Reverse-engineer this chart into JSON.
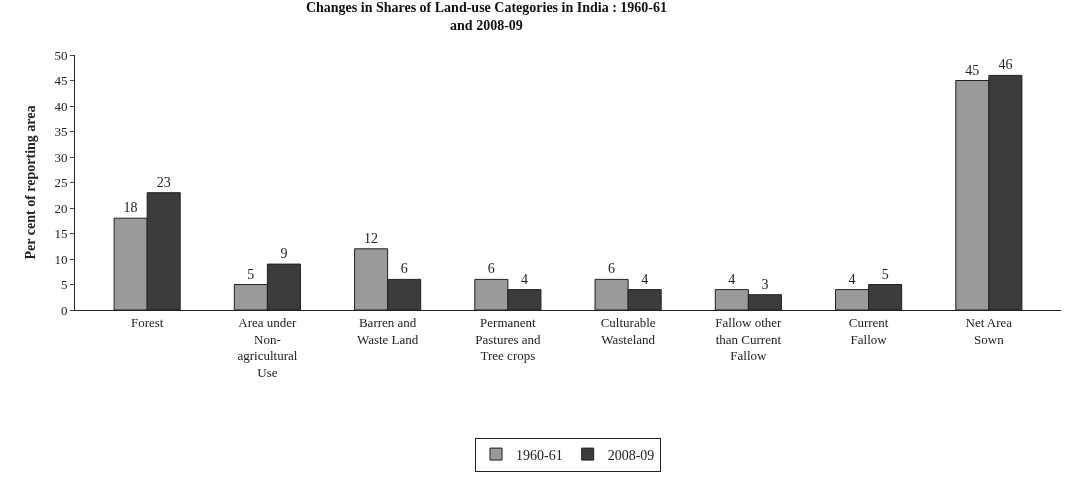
{
  "chart_data": {
    "type": "bar",
    "title": "Changes in Shares of Land-use Categories in India : 1960-61 and 2008-09",
    "ylabel": "Per cent of reporting area",
    "categories": [
      "Forest",
      "Area under Non-agricultural Use",
      "Barren and Waste Land",
      "Permanent Pastures and Tree crops",
      "Culturable Wasteland",
      "Fallow other than Current Fallow",
      "Current Fallow",
      "Net Area Sown"
    ],
    "series": [
      {
        "name": "1960-61",
        "color": "#9a9a9a",
        "values": [
          18,
          5,
          12,
          6,
          6,
          4,
          4,
          45
        ]
      },
      {
        "name": "2008-09",
        "color": "#3c3c3c",
        "values": [
          23,
          9,
          6,
          4,
          4,
          3,
          5,
          46
        ]
      }
    ],
    "ylim": [
      0,
      50
    ],
    "yticks": [
      0,
      5,
      10,
      15,
      20,
      25,
      30,
      35,
      40,
      45,
      50
    ],
    "data_labels": true,
    "legend": "bottom"
  }
}
